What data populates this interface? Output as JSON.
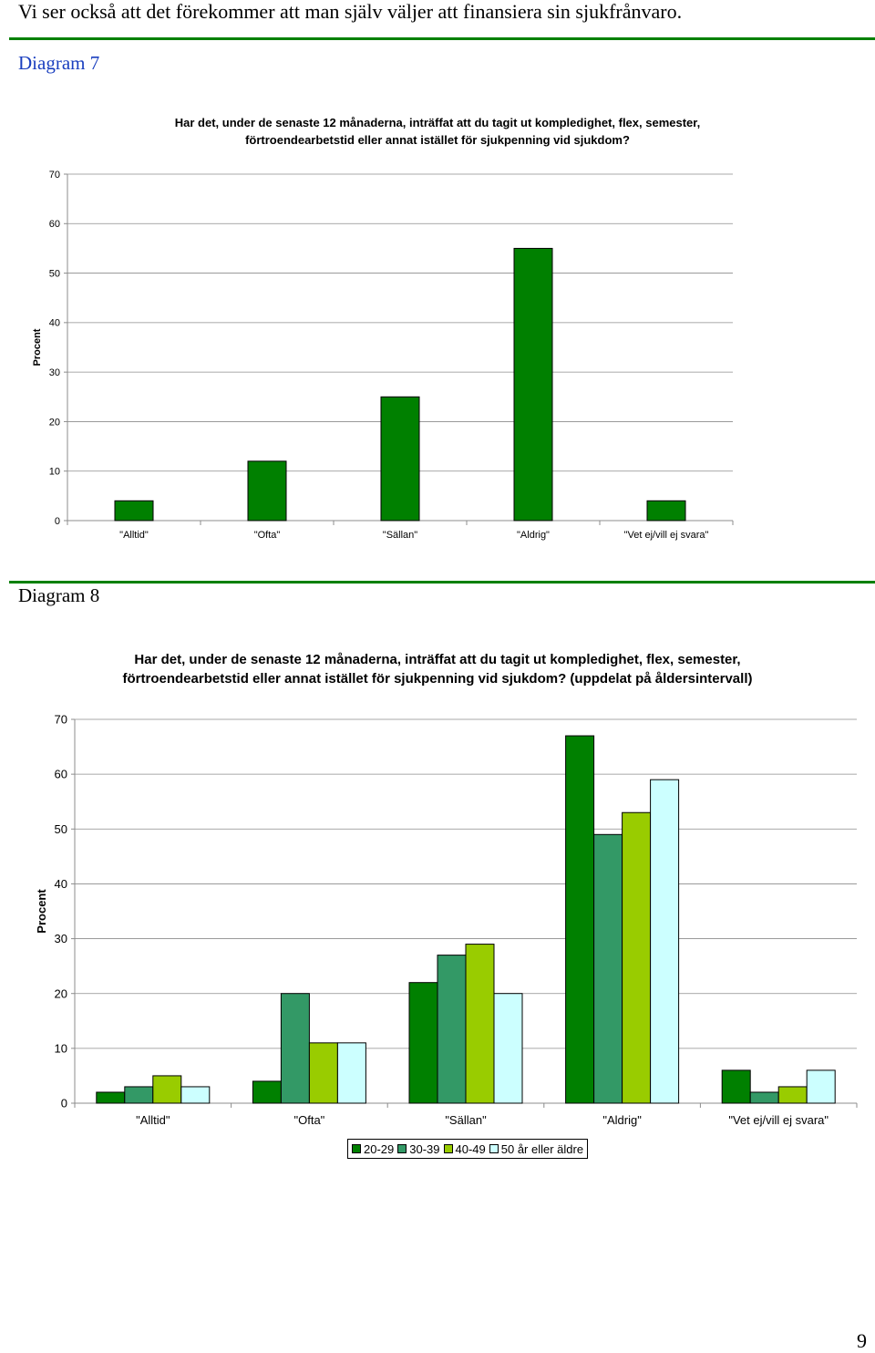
{
  "intro_text": "Vi ser också att det förekommer att man själv väljer att finansiera sin sjukfrånvaro.",
  "page_number": "9",
  "colors": {
    "rule": "#008000",
    "d7_label": "#1a3fbf"
  },
  "diagram7": {
    "label": "Diagram 7",
    "title_line1": "Har det, under de senaste 12 månaderna, inträffat att du tagit ut kompledighet, flex, semester,",
    "title_line2": "förtroendearbetstid eller annat istället för sjukpenning vid sjukdom?"
  },
  "diagram8": {
    "label": "Diagram 8",
    "title_line1": "Har det, under de senaste 12 månaderna, inträffat att du tagit ut kompledighet, flex, semester,",
    "title_line2": "förtroendearbetstid eller annat istället för sjukpenning vid sjukdom? (uppdelat på åldersintervall)"
  },
  "chart_data": [
    {
      "type": "bar",
      "title": "Har det, under de senaste 12 månaderna, inträffat att du tagit ut kompledighet, flex, semester, förtroendearbetstid eller annat istället för sjukpenning vid sjukdom?",
      "xlabel": "",
      "ylabel": "Procent",
      "ylim": [
        0,
        70
      ],
      "yticks": [
        0,
        10,
        20,
        30,
        40,
        50,
        60,
        70
      ],
      "grid": true,
      "categories": [
        "\"Alltid\"",
        "\"Ofta\"",
        "\"Sällan\"",
        "\"Aldrig\"",
        "\"Vet ej/vill ej svara\""
      ],
      "series": [
        {
          "color": "#008000",
          "values": [
            4,
            12,
            25,
            55,
            4
          ]
        }
      ]
    },
    {
      "type": "bar",
      "title": "Har det, under de senaste 12 månaderna, inträffat att du tagit ut kompledighet, flex, semester, förtroendearbetstid eller annat istället för sjukpenning vid sjukdom? (uppdelat på åldersintervall)",
      "xlabel": "",
      "ylabel": "Procent",
      "ylim": [
        0,
        70
      ],
      "yticks": [
        0,
        10,
        20,
        30,
        40,
        50,
        60,
        70
      ],
      "grid": true,
      "legend_position": "bottom",
      "categories": [
        "\"Alltid\"",
        "\"Ofta\"",
        "\"Sällan\"",
        "\"Aldrig\"",
        "\"Vet ej/vill ej svara\""
      ],
      "series": [
        {
          "name": "20-29",
          "color": "#008000",
          "values": [
            2,
            4,
            22,
            67,
            6
          ]
        },
        {
          "name": "30-39",
          "color": "#339966",
          "values": [
            3,
            20,
            27,
            49,
            2
          ]
        },
        {
          "name": "40-49",
          "color": "#99cc00",
          "values": [
            5,
            11,
            29,
            53,
            3
          ]
        },
        {
          "name": "50 år eller äldre",
          "color": "#ccffff",
          "values": [
            3,
            11,
            20,
            59,
            6
          ]
        }
      ]
    }
  ]
}
